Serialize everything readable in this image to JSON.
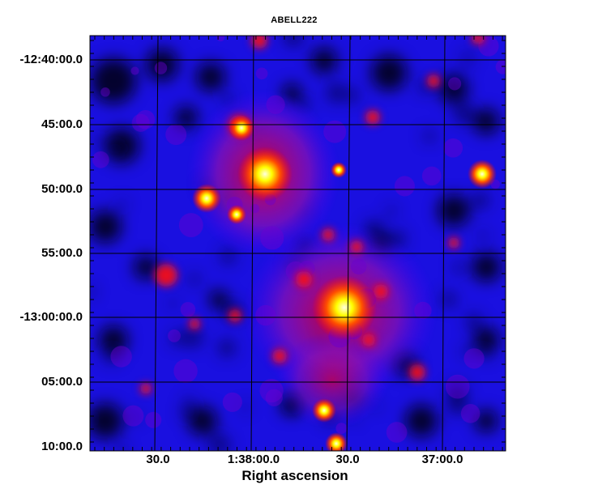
{
  "title": "ABELL222",
  "axes": {
    "y_tick_labels": [
      "-12:40:00.0",
      "45:00.0",
      "50:00.0",
      "55:00.0",
      "-13:00:00.0",
      "05:00.0",
      "10:00.0"
    ],
    "x_tick_labels": [
      "30.0",
      "1:38:00.0",
      "30.0",
      "37:00.0"
    ],
    "x_title": "Right ascension"
  },
  "image": {
    "colormap": [
      "#000000",
      "#0000ff",
      "#ff0000",
      "#ffff00",
      "#ffffff"
    ],
    "grid_color": "#000000",
    "frame_color": "#000000"
  }
}
